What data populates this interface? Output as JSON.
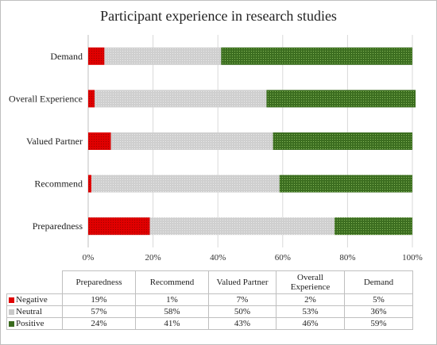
{
  "chart_data": {
    "type": "bar",
    "orientation": "horizontal",
    "stacked": "percent",
    "title": "Participant experience in research studies",
    "categories": [
      "Preparedness",
      "Recommend",
      "Valued Partner",
      "Overall Experience",
      "Demand"
    ],
    "series": [
      {
        "name": "Negative",
        "values": [
          19,
          1,
          7,
          2,
          5
        ],
        "labels": [
          "19%",
          "1%",
          "7%",
          "2%",
          "5%"
        ],
        "color": "#e00000",
        "pattern": "dotted-dark"
      },
      {
        "name": "Neutral",
        "values": [
          57,
          58,
          50,
          53,
          36
        ],
        "labels": [
          "57%",
          "58%",
          "50%",
          "53%",
          "36%"
        ],
        "color": "#c8c8c8",
        "pattern": "dotted-light"
      },
      {
        "name": "Positive",
        "values": [
          24,
          41,
          43,
          46,
          59
        ],
        "labels": [
          "24%",
          "41%",
          "43%",
          "46%",
          "59%"
        ],
        "color": "#3a6b1e",
        "pattern": "dotted-green"
      }
    ],
    "xlim": [
      0,
      100
    ],
    "xticks": [
      "0%",
      "20%",
      "40%",
      "60%",
      "80%",
      "100%"
    ],
    "grid": true,
    "legend": "data-table-below"
  }
}
